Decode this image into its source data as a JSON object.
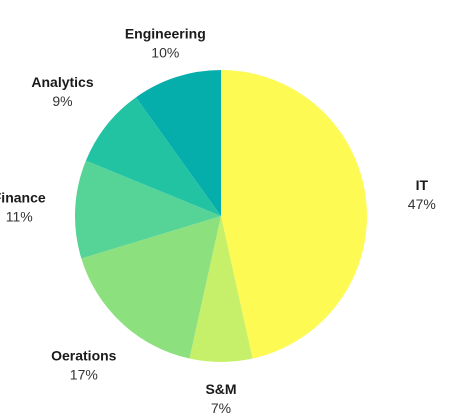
{
  "chart_data": {
    "type": "pie",
    "title": "",
    "start_angle_deg": 0,
    "direction": "clockwise",
    "slices": [
      {
        "label": "IT",
        "value": 47,
        "display": "47%",
        "color": "#fcfa53"
      },
      {
        "label": "S&M",
        "value": 7,
        "display": "7%",
        "color": "#c7f06a"
      },
      {
        "label": "Oerations",
        "value": 17,
        "display": "17%",
        "color": "#8ce07e"
      },
      {
        "label": "Finance",
        "value": 11,
        "display": "11%",
        "color": "#56d396"
      },
      {
        "label": "Analytics",
        "value": 9,
        "display": "9%",
        "color": "#22c3a3"
      },
      {
        "label": "Engineering",
        "value": 10,
        "display": "10%",
        "color": "#05aeaa"
      }
    ],
    "legend": "none",
    "grid": false
  }
}
